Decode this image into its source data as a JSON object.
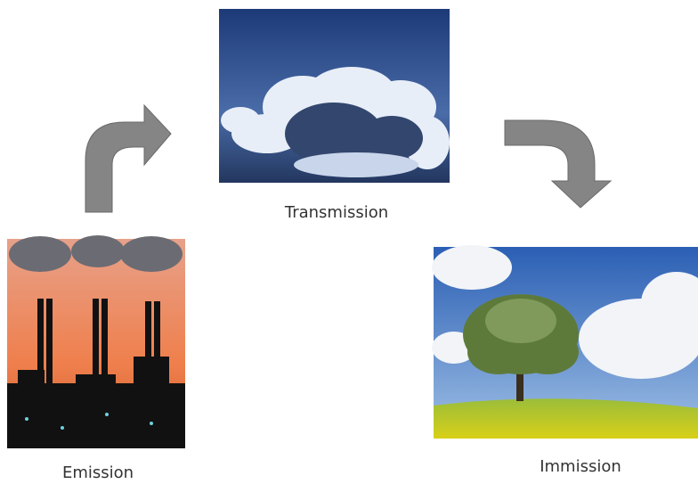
{
  "nodes": [
    {
      "label": "Emission"
    },
    {
      "label": "Transmission"
    },
    {
      "label": "Immission"
    }
  ]
}
